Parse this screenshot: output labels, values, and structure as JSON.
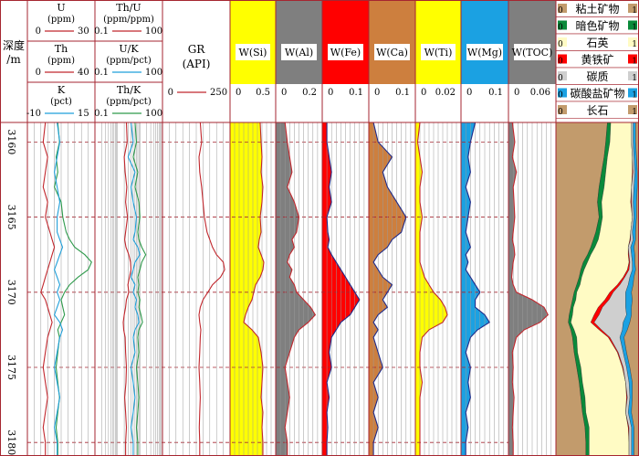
{
  "chart_data": {
    "type": "line",
    "depth_axis": {
      "label_l1": "深度",
      "label_l2": "/m",
      "ticks": [
        "3160",
        "3165",
        "3170",
        "3175",
        "3180"
      ],
      "range": [
        3158.7,
        3180.9
      ]
    },
    "header_tracks": {
      "c1": [
        {
          "name": "U",
          "unit": "(ppm)",
          "min": "0",
          "max": "30",
          "color": "#c1272d"
        },
        {
          "name": "Th",
          "unit": "(ppm)",
          "min": "0",
          "max": "40",
          "color": "#c1272d"
        },
        {
          "name": "K",
          "unit": "(pct)",
          "min": "-10",
          "max": "15",
          "color": "#1f9fd9"
        }
      ],
      "c2": [
        {
          "name": "Th/U",
          "unit": "(ppm/ppm)",
          "min": "0.1",
          "max": "100",
          "color": "#c1272d"
        },
        {
          "name": "U/K",
          "unit": "(ppm/pct)",
          "min": "0.1",
          "max": "100",
          "color": "#1f9fd9"
        },
        {
          "name": "Th/K",
          "unit": "(ppm/pct)",
          "min": "0.1",
          "max": "100",
          "color": "#2e9a4b"
        }
      ],
      "gr": {
        "name": "GR",
        "unit": "(API)",
        "min": "0",
        "max": "250",
        "color": "#c1272d"
      }
    },
    "element_tracks": [
      {
        "name": "W(Si)",
        "min": "0",
        "max": "0.5",
        "color": "#ffff00"
      },
      {
        "name": "W(Al)",
        "min": "0",
        "max": "0.2",
        "color": "#7f7f7f"
      },
      {
        "name": "W(Fe)",
        "min": "0",
        "max": "0.1",
        "color": "#ff0000"
      },
      {
        "name": "W(Ca)",
        "min": "0",
        "max": "0.1",
        "color": "#cd7f3e"
      },
      {
        "name": "W(Ti)",
        "min": "0",
        "max": "0.02",
        "color": "#ffff00"
      },
      {
        "name": "W(Mg)",
        "min": "0",
        "max": "0.1",
        "color": "#1ba1e2"
      },
      {
        "name": "W(TOC)",
        "min": "0",
        "max": "0.06",
        "color": "#7f7f7f"
      }
    ],
    "mineral_legend": [
      {
        "label": "粘土矿物",
        "color": "#c29b6c",
        "min": "0",
        "max": "1"
      },
      {
        "label": "暗色矿物",
        "color": "#0a8a3a",
        "min": "0",
        "max": "1"
      },
      {
        "label": "石英",
        "color": "#fffbc4",
        "min": "0",
        "max": "1"
      },
      {
        "label": "黄铁矿",
        "color": "#ff0000",
        "min": "0",
        "max": "1"
      },
      {
        "label": "碳质",
        "color": "#cfcfcf",
        "min": "0",
        "max": "1"
      },
      {
        "label": "碳酸盐矿物",
        "color": "#1ba1e2",
        "min": "0",
        "max": "1"
      },
      {
        "label": "长石",
        "color": "#c29b6c",
        "min": "0",
        "max": "1"
      }
    ],
    "curves": {
      "depth": [
        3158.7,
        3160,
        3161,
        3162,
        3163,
        3164,
        3165,
        3166,
        3166.5,
        3167,
        3167.5,
        3168,
        3168.5,
        3169,
        3169.5,
        3170,
        3170.5,
        3171,
        3171.5,
        3172,
        3172.5,
        3173,
        3174,
        3175,
        3176,
        3177,
        3178,
        3179,
        3180,
        3180.9
      ],
      "U": [
        8,
        7,
        9,
        8,
        7,
        9,
        8,
        10,
        11,
        12,
        11,
        10,
        9,
        8,
        7,
        6,
        8,
        9,
        10,
        11,
        10,
        9,
        8,
        7,
        8,
        9,
        8,
        7,
        8,
        8
      ],
      "Th": [
        18,
        19,
        17,
        18,
        16,
        20,
        21,
        23,
        25,
        28,
        34,
        38,
        36,
        30,
        25,
        22,
        20,
        21,
        22,
        20,
        18,
        19,
        18,
        17,
        18,
        19,
        18,
        17,
        18,
        18
      ],
      "K": [
        1,
        2,
        1,
        0,
        1,
        2,
        1,
        1,
        2,
        3,
        2,
        1,
        0,
        1,
        2,
        1,
        2,
        1,
        0,
        2,
        3,
        2,
        1,
        0,
        1,
        2,
        1,
        0,
        1,
        1
      ],
      "ThU": [
        2.5,
        2.7,
        2.0,
        2.2,
        2.6,
        2.3,
        2.8,
        2.3,
        2.1,
        2.4,
        3.2,
        3.8,
        4.0,
        3.4,
        2.9,
        3.2,
        2.5,
        2.3,
        2.0,
        1.8,
        1.9,
        2.2,
        2.3,
        2.5,
        2.4,
        2.1,
        2.3,
        2.5,
        2.3,
        2.3
      ],
      "UK": [
        4,
        5,
        3,
        6,
        4,
        5,
        7,
        6,
        5,
        8,
        10,
        6,
        5,
        4,
        6,
        5,
        7,
        6,
        8,
        9,
        6,
        5,
        6,
        4,
        5,
        6,
        5,
        4,
        5,
        5
      ],
      "ThK": [
        6,
        7,
        5,
        8,
        6,
        9,
        10,
        8,
        9,
        12,
        18,
        12,
        10,
        8,
        9,
        8,
        10,
        9,
        11,
        13,
        9,
        8,
        9,
        7,
        8,
        9,
        8,
        7,
        8,
        8
      ],
      "GR": [
        140,
        145,
        135,
        138,
        145,
        150,
        155,
        165,
        175,
        185,
        200,
        225,
        230,
        215,
        185,
        168,
        150,
        140,
        135,
        138,
        142,
        140,
        138,
        135,
        138,
        140,
        138,
        136,
        138,
        138
      ],
      "Si": [
        0.33,
        0.34,
        0.35,
        0.34,
        0.36,
        0.35,
        0.33,
        0.34,
        0.32,
        0.31,
        0.34,
        0.37,
        0.36,
        0.33,
        0.28,
        0.26,
        0.24,
        0.2,
        0.17,
        0.15,
        0.24,
        0.31,
        0.34,
        0.36,
        0.35,
        0.34,
        0.36,
        0.35,
        0.36,
        0.36
      ],
      "Al": [
        0.04,
        0.05,
        0.06,
        0.07,
        0.05,
        0.08,
        0.1,
        0.09,
        0.07,
        0.08,
        0.06,
        0.05,
        0.07,
        0.06,
        0.08,
        0.09,
        0.12,
        0.15,
        0.17,
        0.14,
        0.1,
        0.08,
        0.06,
        0.04,
        0.05,
        0.06,
        0.05,
        0.04,
        0.05,
        0.05
      ],
      "Fe": [
        0.01,
        0.01,
        0.015,
        0.02,
        0.015,
        0.02,
        0.01,
        0.012,
        0.015,
        0.012,
        0.02,
        0.03,
        0.04,
        0.05,
        0.06,
        0.07,
        0.08,
        0.07,
        0.06,
        0.04,
        0.03,
        0.02,
        0.015,
        0.02,
        0.01,
        0.015,
        0.01,
        0.012,
        0.01,
        0.01
      ],
      "Ca": [
        0.01,
        0.02,
        0.05,
        0.03,
        0.04,
        0.06,
        0.08,
        0.07,
        0.05,
        0.04,
        0.02,
        0.01,
        0.02,
        0.03,
        0.05,
        0.04,
        0.03,
        0.04,
        0.02,
        0.01,
        0.02,
        0.01,
        0.02,
        0.03,
        0.01,
        0.02,
        0.01,
        0.02,
        0.01,
        0.01
      ],
      "Ti": [
        0.002,
        0.001,
        0.002,
        0.003,
        0.002,
        0.002,
        0.003,
        0.002,
        0.002,
        0.002,
        0.002,
        0.002,
        0.003,
        0.004,
        0.006,
        0.008,
        0.011,
        0.013,
        0.014,
        0.012,
        0.006,
        0.003,
        0.002,
        0.002,
        0.003,
        0.002,
        0.002,
        0.002,
        0.002,
        0.002
      ],
      "Mg": [
        0.03,
        0.02,
        0.015,
        0.02,
        0.01,
        0.02,
        0.015,
        0.01,
        0.015,
        0.02,
        0.01,
        0.015,
        0.01,
        0.02,
        0.03,
        0.04,
        0.03,
        0.03,
        0.05,
        0.06,
        0.035,
        0.02,
        0.01,
        0.02,
        0.015,
        0.02,
        0.01,
        0.015,
        0.01,
        0.01
      ],
      "TOC": [
        0.005,
        0.008,
        0.005,
        0.01,
        0.006,
        0.007,
        0.008,
        0.006,
        0.005,
        0.007,
        0.008,
        0.006,
        0.005,
        0.004,
        0.006,
        0.01,
        0.03,
        0.045,
        0.05,
        0.04,
        0.02,
        0.01,
        0.005,
        0.006,
        0.005,
        0.007,
        0.006,
        0.005,
        0.006,
        0.006
      ],
      "min_clay": [
        0.62,
        0.6,
        0.58,
        0.55,
        0.52,
        0.5,
        0.52,
        0.48,
        0.45,
        0.42,
        0.38,
        0.33,
        0.3,
        0.28,
        0.25,
        0.22,
        0.2,
        0.18,
        0.16,
        0.15,
        0.18,
        0.2,
        0.22,
        0.25,
        0.28,
        0.3,
        0.32,
        0.35,
        0.36,
        0.36
      ],
      "min_dark": [
        0.04,
        0.05,
        0.04,
        0.05,
        0.06,
        0.05,
        0.04,
        0.05,
        0.06,
        0.05,
        0.04,
        0.05,
        0.04,
        0.03,
        0.04,
        0.03,
        0.04,
        0.03,
        0.04,
        0.03,
        0.04,
        0.05,
        0.04,
        0.05,
        0.04,
        0.05,
        0.04,
        0.05,
        0.04,
        0.04
      ],
      "min_quartz": [
        0.25,
        0.26,
        0.3,
        0.32,
        0.33,
        0.35,
        0.36,
        0.37,
        0.38,
        0.4,
        0.45,
        0.5,
        0.52,
        0.5,
        0.45,
        0.4,
        0.35,
        0.3,
        0.26,
        0.24,
        0.3,
        0.38,
        0.48,
        0.5,
        0.52,
        0.5,
        0.48,
        0.47,
        0.48,
        0.48
      ],
      "min_pyrite": [
        0.0,
        0.0,
        0.0,
        0.01,
        0.0,
        0.01,
        0.0,
        0.0,
        0.01,
        0.0,
        0.01,
        0.01,
        0.02,
        0.02,
        0.03,
        0.04,
        0.05,
        0.05,
        0.06,
        0.04,
        0.03,
        0.02,
        0.01,
        0.01,
        0.0,
        0.01,
        0.0,
        0.01,
        0.0,
        0.0
      ],
      "min_carbon": [
        0.02,
        0.02,
        0.02,
        0.02,
        0.03,
        0.02,
        0.02,
        0.02,
        0.03,
        0.03,
        0.03,
        0.03,
        0.04,
        0.06,
        0.1,
        0.15,
        0.2,
        0.28,
        0.33,
        0.35,
        0.25,
        0.12,
        0.06,
        0.04,
        0.04,
        0.03,
        0.03,
        0.03,
        0.03,
        0.03
      ],
      "min_carb": [
        0.03,
        0.03,
        0.03,
        0.03,
        0.04,
        0.04,
        0.03,
        0.04,
        0.03,
        0.04,
        0.04,
        0.03,
        0.04,
        0.05,
        0.06,
        0.07,
        0.08,
        0.07,
        0.06,
        0.08,
        0.06,
        0.05,
        0.04,
        0.04,
        0.04,
        0.03,
        0.04,
        0.03,
        0.03,
        0.03
      ]
    }
  }
}
